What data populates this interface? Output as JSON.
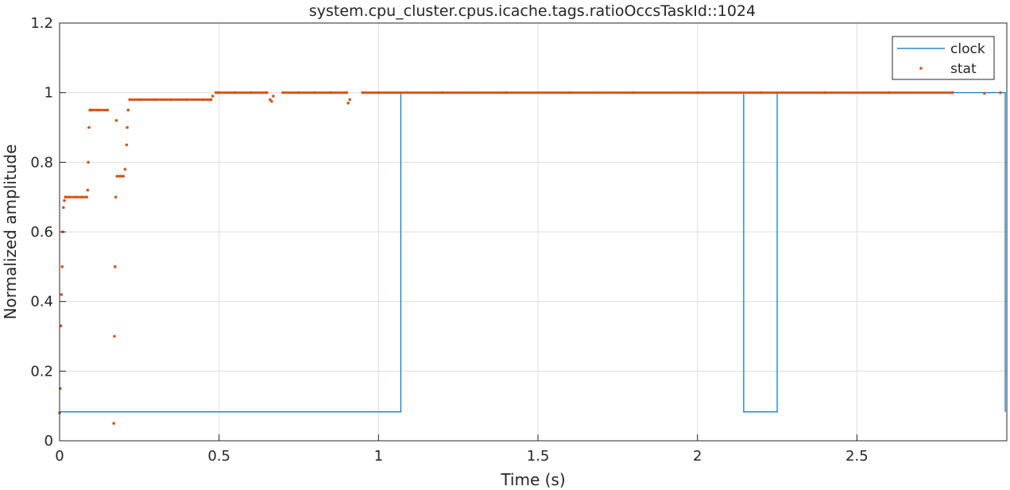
{
  "chart_data": {
    "type": "line",
    "title": "system.cpu_cluster.cpus.icache.tags.ratioOccsTaskId::1024",
    "xlabel": "Time (s)",
    "ylabel": "Normalized amplitude",
    "xlim": [
      0,
      2.97
    ],
    "ylim": [
      0,
      1.2
    ],
    "grid": true,
    "legend_position": "top-right",
    "x_ticks": [
      0,
      0.5,
      1,
      1.5,
      2,
      2.5
    ],
    "x_tick_labels": [
      "0",
      "0.5",
      "1",
      "1.5",
      "2",
      "2.5"
    ],
    "y_ticks": [
      0,
      0.2,
      0.4,
      0.6,
      0.8,
      1,
      1.2
    ],
    "y_tick_labels": [
      "0",
      "0.2",
      "0.4",
      "0.6",
      "0.8",
      "1",
      "1.2"
    ],
    "series": [
      {
        "name": "clock",
        "style": "line",
        "color": "#0072BD",
        "x": [
          0,
          1.07,
          1.07,
          2.145,
          2.145,
          2.25,
          2.25,
          2.965,
          2.965
        ],
        "y": [
          0.083,
          0.083,
          1.0,
          1.0,
          0.083,
          0.083,
          1.0,
          1.0,
          0.083
        ]
      },
      {
        "name": "stat",
        "style": "markers",
        "color": "#D95319",
        "x": [
          0.0,
          0.002,
          0.004,
          0.006,
          0.008,
          0.01,
          0.012,
          0.015,
          0.018,
          0.02,
          0.03,
          0.05,
          0.07,
          0.085,
          0.088,
          0.09,
          0.092,
          0.095,
          0.1,
          0.12,
          0.15,
          0.17,
          0.172,
          0.174,
          0.176,
          0.178,
          0.18,
          0.19,
          0.2,
          0.205,
          0.21,
          0.212,
          0.215,
          0.22,
          0.25,
          0.3,
          0.35,
          0.4,
          0.45,
          0.475,
          0.48,
          0.49,
          0.5,
          0.55,
          0.6,
          0.65,
          0.66,
          0.665,
          0.67,
          0.7,
          0.75,
          0.8,
          0.85,
          0.9,
          0.905,
          0.91,
          0.95,
          1.0,
          1.2,
          1.4,
          1.6,
          1.8,
          2.0,
          2.2,
          2.4,
          2.6,
          2.8,
          2.9,
          2.95
        ],
        "y": [
          0.08,
          0.15,
          0.33,
          0.42,
          0.5,
          0.6,
          0.67,
          0.69,
          0.7,
          0.7,
          0.7,
          0.7,
          0.7,
          0.7,
          0.72,
          0.8,
          0.9,
          0.95,
          0.95,
          0.95,
          0.95,
          0.05,
          0.3,
          0.5,
          0.7,
          0.92,
          0.76,
          0.76,
          0.76,
          0.78,
          0.85,
          0.9,
          0.95,
          0.98,
          0.98,
          0.98,
          0.98,
          0.98,
          0.98,
          0.98,
          0.99,
          1.0,
          1.0,
          1.0,
          1.0,
          1.0,
          0.98,
          0.975,
          0.99,
          1.0,
          1.0,
          1.0,
          1.0,
          1.0,
          0.97,
          0.98,
          1.0,
          1.0,
          1.0,
          1.0,
          1.0,
          1.0,
          1.0,
          1.0,
          1.0,
          1.0,
          1.0,
          0.998,
          1.0
        ]
      }
    ]
  }
}
